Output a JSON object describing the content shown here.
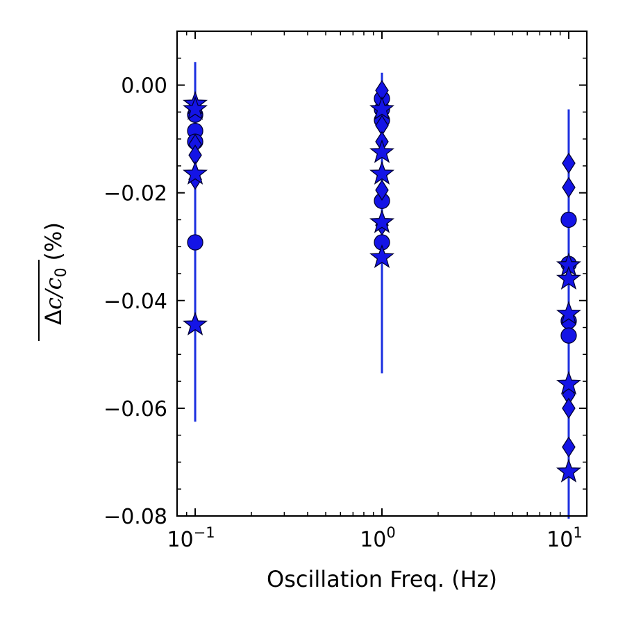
{
  "chart_data": {
    "type": "scatter",
    "xlabel": "Oscillation Freq. (Hz)",
    "ylabel": {
      "delta": "Δ",
      "c": "c",
      "slash": "/",
      "c0_base": "c",
      "c0_sub": "0",
      "unit": "(%)"
    },
    "x_scale": "log",
    "xlim": [
      0.08,
      12.5
    ],
    "ylim": [
      -0.08,
      0.01
    ],
    "x_ticks": [
      {
        "value": 0.1,
        "base": "10",
        "exp": "−1"
      },
      {
        "value": 1,
        "base": "10",
        "exp": "0"
      },
      {
        "value": 10,
        "base": "10",
        "exp": "1"
      }
    ],
    "y_ticks": [
      {
        "value": 0.0,
        "label": "0.00"
      },
      {
        "value": -0.02,
        "label": "−0.02"
      },
      {
        "value": -0.04,
        "label": "−0.04"
      },
      {
        "value": -0.06,
        "label": "−0.06"
      },
      {
        "value": -0.08,
        "label": "−0.08"
      }
    ],
    "grid": false,
    "marker_color": "#1414e6",
    "marker_edge": "#000033",
    "errorbar_color": "#1a2ee0",
    "errorbars": [
      {
        "x": 0.1,
        "y_low": -0.0625,
        "y_high": 0.0043
      },
      {
        "x": 1,
        "y_low": -0.0535,
        "y_high": 0.0023
      },
      {
        "x": 10,
        "y_low": -0.0805,
        "y_high": -0.0045
      }
    ],
    "series": [
      {
        "marker": "circle",
        "points": [
          {
            "x": 0.1,
            "y": -0.0085
          },
          {
            "x": 0.1,
            "y": -0.0105
          },
          {
            "x": 0.1,
            "y": -0.0055
          },
          {
            "x": 0.1,
            "y": -0.0292
          },
          {
            "x": 1,
            "y": -0.0045
          },
          {
            "x": 1,
            "y": -0.0065
          },
          {
            "x": 1,
            "y": -0.0215
          },
          {
            "x": 1,
            "y": -0.0292
          },
          {
            "x": 1,
            "y": -0.0025
          },
          {
            "x": 10,
            "y": -0.025
          },
          {
            "x": 10,
            "y": -0.0332
          },
          {
            "x": 10,
            "y": -0.0438
          },
          {
            "x": 10,
            "y": -0.0465
          }
        ]
      },
      {
        "marker": "diamond",
        "points": [
          {
            "x": 0.1,
            "y": -0.011
          },
          {
            "x": 0.1,
            "y": -0.013
          },
          {
            "x": 0.1,
            "y": -0.0175
          },
          {
            "x": 1,
            "y": -0.001
          },
          {
            "x": 1,
            "y": -0.0075
          },
          {
            "x": 1,
            "y": -0.0105
          },
          {
            "x": 1,
            "y": -0.0195
          },
          {
            "x": 1,
            "y": -0.026
          },
          {
            "x": 10,
            "y": -0.0145
          },
          {
            "x": 10,
            "y": -0.019
          },
          {
            "x": 10,
            "y": -0.0575
          },
          {
            "x": 10,
            "y": -0.06
          },
          {
            "x": 10,
            "y": -0.0672
          }
        ]
      },
      {
        "marker": "star",
        "points": [
          {
            "x": 0.1,
            "y": -0.0035
          },
          {
            "x": 0.1,
            "y": -0.0045
          },
          {
            "x": 0.1,
            "y": -0.0165
          },
          {
            "x": 0.1,
            "y": -0.0445
          },
          {
            "x": 1,
            "y": -0.0045
          },
          {
            "x": 1,
            "y": -0.0125
          },
          {
            "x": 1,
            "y": -0.0165
          },
          {
            "x": 1,
            "y": -0.0255
          },
          {
            "x": 1,
            "y": -0.032
          },
          {
            "x": 10,
            "y": -0.0335
          },
          {
            "x": 10,
            "y": -0.036
          },
          {
            "x": 10,
            "y": -0.0425
          },
          {
            "x": 10,
            "y": -0.0555
          },
          {
            "x": 10,
            "y": -0.0718
          }
        ]
      }
    ]
  }
}
